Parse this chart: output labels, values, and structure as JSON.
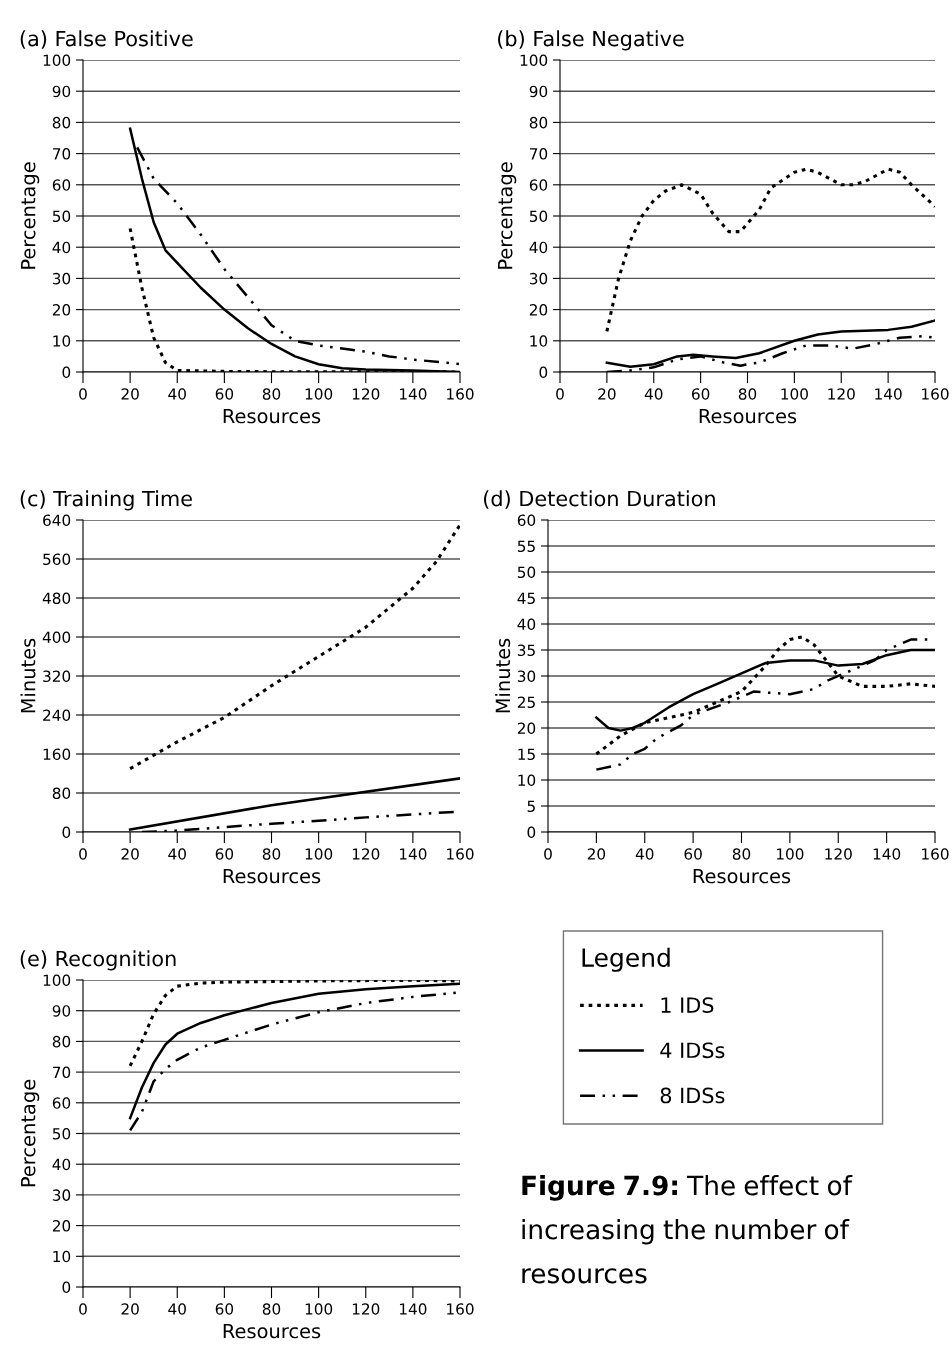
{
  "chart_data": [
    {
      "type": "line",
      "title": "(a) False Positive",
      "xlabel": "Resources",
      "ylabel": "Percentage",
      "xlim": [
        0,
        160
      ],
      "xticks": [
        0,
        20,
        40,
        60,
        80,
        100,
        120,
        140,
        160
      ],
      "ylim": [
        0,
        100
      ],
      "yticks": [
        0,
        10,
        20,
        30,
        40,
        50,
        60,
        70,
        80,
        90,
        100
      ],
      "grid": "y",
      "legend": "right",
      "legend_title": "Legend",
      "series": [
        {
          "name": "1 IDS",
          "color": "#000000",
          "line_style": "dotted",
          "x": [
            20,
            25,
            30,
            35,
            40,
            60,
            80,
            100,
            120,
            140,
            160
          ],
          "values": [
            46,
            27,
            11,
            3,
            0.5,
            0.2,
            0.1,
            0.1,
            0.1,
            0.1,
            0
          ]
        },
        {
          "name": "4 IDSs",
          "color": "#000000",
          "line_style": "solid",
          "x": [
            20,
            25,
            30,
            35,
            40,
            50,
            60,
            70,
            80,
            90,
            100,
            110,
            120,
            140,
            160
          ],
          "values": [
            78,
            62,
            48,
            39,
            35,
            27,
            20,
            14,
            9,
            5,
            2.5,
            1.2,
            0.8,
            0.5,
            0
          ]
        },
        {
          "name": "8 IDSs",
          "color": "#000000",
          "line_style": "dashed",
          "x": [
            23,
            30,
            40,
            50,
            60,
            70,
            80,
            90,
            100,
            110,
            120,
            130,
            140,
            160
          ],
          "values": [
            72,
            62,
            54,
            44,
            33,
            24,
            15,
            10,
            8.5,
            7.5,
            6.5,
            5,
            4,
            2.5
          ]
        }
      ]
    },
    {
      "type": "line",
      "title": "(b) False Negative",
      "xlabel": "Resources",
      "ylabel": "Percentage",
      "xlim": [
        0,
        160
      ],
      "xticks": [
        0,
        20,
        40,
        60,
        80,
        100,
        120,
        140,
        160
      ],
      "ylim": [
        0,
        100
      ],
      "yticks": [
        0,
        10,
        20,
        30,
        40,
        50,
        60,
        70,
        80,
        90,
        100
      ],
      "grid": "y",
      "series": [
        {
          "color": "#000000",
          "line_style": "dotted",
          "x": [
            20,
            25,
            30,
            35,
            40,
            45,
            52,
            60,
            65,
            72,
            77,
            85,
            90,
            100,
            105,
            110,
            120,
            125,
            130,
            140,
            145,
            150,
            160
          ],
          "values": [
            13,
            30,
            42,
            50,
            55,
            58,
            60,
            57,
            51,
            45,
            45,
            52,
            59,
            64,
            65,
            64,
            60,
            60,
            61,
            65,
            64,
            60,
            53
          ]
        },
        {
          "color": "#000000",
          "line_style": "solid",
          "x": [
            20,
            30,
            40,
            50,
            57,
            65,
            75,
            85,
            100,
            110,
            120,
            140,
            150,
            160
          ],
          "values": [
            3,
            1.7,
            2.5,
            5,
            5.5,
            5,
            4.5,
            6,
            10,
            12,
            13,
            13.5,
            14.5,
            16.5
          ]
        },
        {
          "color": "#000000",
          "line_style": "dashed",
          "x": [
            20,
            30,
            40,
            50,
            60,
            70,
            77,
            80,
            85,
            95,
            105,
            115,
            125,
            135,
            145,
            155,
            160
          ],
          "values": [
            0,
            0.5,
            1.5,
            4,
            5,
            3,
            2,
            2.5,
            3,
            6,
            8.5,
            8.5,
            7.5,
            9,
            11,
            11.5,
            11
          ]
        }
      ]
    },
    {
      "type": "line",
      "title": "(c) Training Time",
      "xlabel": "Resources",
      "ylabel": "Minutes",
      "xlim": [
        0,
        160
      ],
      "xticks": [
        0,
        20,
        40,
        60,
        80,
        100,
        120,
        140,
        160
      ],
      "ylim": [
        0,
        640
      ],
      "yticks": [
        0,
        80,
        160,
        240,
        320,
        400,
        480,
        560,
        640
      ],
      "grid": "y",
      "series": [
        {
          "color": "#000000",
          "line_style": "dotted",
          "x": [
            20,
            40,
            60,
            80,
            100,
            120,
            140,
            150,
            160
          ],
          "values": [
            130,
            185,
            235,
            300,
            360,
            420,
            500,
            555,
            630
          ]
        },
        {
          "color": "#000000",
          "line_style": "solid",
          "x": [
            20,
            80,
            160
          ],
          "values": [
            5,
            55,
            110
          ]
        },
        {
          "color": "#000000",
          "line_style": "dashed",
          "x": [
            25,
            40,
            60,
            80,
            100,
            120,
            140,
            160
          ],
          "values": [
            0,
            3,
            10,
            17,
            23,
            30,
            36,
            42
          ]
        }
      ]
    },
    {
      "type": "line",
      "title": "(d) Detection Duration",
      "xlabel": "Resources",
      "ylabel": "Minutes",
      "xlim": [
        0,
        160
      ],
      "xticks": [
        0,
        20,
        40,
        60,
        80,
        100,
        120,
        140,
        160
      ],
      "ylim": [
        0,
        60
      ],
      "yticks": [
        0,
        5,
        10,
        15,
        20,
        25,
        30,
        35,
        40,
        45,
        50,
        55,
        60
      ],
      "grid": "y",
      "series": [
        {
          "color": "#000000",
          "line_style": "dotted",
          "x": [
            20,
            30,
            40,
            50,
            60,
            70,
            80,
            90,
            95,
            100,
            105,
            110,
            115,
            120,
            130,
            140,
            150,
            160
          ],
          "values": [
            15,
            18.5,
            21,
            22,
            23,
            25,
            27,
            32,
            35,
            37,
            37.5,
            36,
            33,
            30,
            28,
            28,
            28.5,
            28
          ]
        },
        {
          "color": "#000000",
          "line_style": "solid",
          "x": [
            20,
            25,
            30,
            35,
            40,
            50,
            60,
            70,
            80,
            90,
            100,
            110,
            120,
            130,
            140,
            150,
            160
          ],
          "values": [
            22,
            20,
            19.5,
            20,
            21,
            24,
            26.5,
            28.5,
            30.5,
            32.5,
            33,
            33,
            32,
            32.3,
            34,
            35,
            35
          ]
        },
        {
          "color": "#000000",
          "line_style": "dashed",
          "x": [
            20,
            30,
            35,
            40,
            45,
            55,
            60,
            75,
            85,
            100,
            110,
            115,
            125,
            135,
            140,
            150,
            157
          ],
          "values": [
            12,
            13,
            15,
            16,
            18,
            20.5,
            22.5,
            25,
            27,
            26.5,
            27.5,
            29,
            31,
            33,
            35,
            37,
            37
          ]
        }
      ]
    },
    {
      "type": "line",
      "title": "(e) Recognition",
      "xlabel": "Resources",
      "ylabel": "Percentage",
      "xlim": [
        0,
        160
      ],
      "xticks": [
        0,
        20,
        40,
        60,
        80,
        100,
        120,
        140,
        160
      ],
      "ylim": [
        0,
        100
      ],
      "yticks": [
        0,
        10,
        20,
        30,
        40,
        50,
        60,
        70,
        80,
        90,
        100
      ],
      "grid": "y",
      "annotations": [
        "Figure 7.9: The effect of increasing the number of resources"
      ],
      "series": [
        {
          "color": "#000000",
          "line_style": "dotted",
          "x": [
            20,
            25,
            30,
            35,
            40,
            50,
            60,
            80,
            100,
            120,
            140,
            160
          ],
          "values": [
            72,
            80,
            89,
            95,
            98,
            99,
            99.3,
            99.5,
            99.7,
            99.8,
            99.9,
            99.7
          ]
        },
        {
          "color": "#000000",
          "line_style": "solid",
          "x": [
            20,
            25,
            30,
            35,
            40,
            50,
            60,
            70,
            80,
            100,
            120,
            140,
            160
          ],
          "values": [
            55,
            65,
            73,
            79,
            82.5,
            86,
            88.5,
            90.5,
            92.5,
            95.5,
            97,
            98,
            98.8
          ]
        },
        {
          "color": "#000000",
          "line_style": "dashed",
          "x": [
            20,
            25,
            30,
            35,
            40,
            50,
            60,
            70,
            80,
            100,
            120,
            140,
            160
          ],
          "values": [
            51,
            57,
            67,
            71,
            74,
            78,
            80.5,
            83,
            85.5,
            89.5,
            92.5,
            94.5,
            96
          ]
        }
      ]
    }
  ]
}
